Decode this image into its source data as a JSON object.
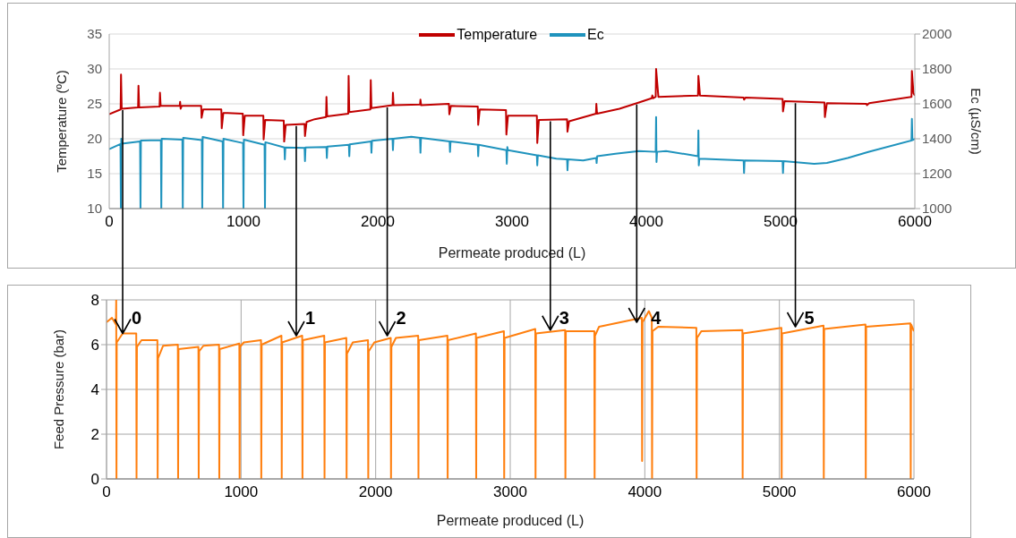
{
  "chart_data": [
    {
      "type": "line",
      "xlabel": "Permeate produced (L)",
      "ylabel": "Temperature (ºC)",
      "y2label": "Ec (µS/cm)",
      "xlim": [
        0,
        6000
      ],
      "xticks": [
        0,
        1000,
        2000,
        3000,
        4000,
        5000,
        6000
      ],
      "ylim": [
        10,
        35
      ],
      "yticks": [
        10,
        15,
        20,
        25,
        30,
        35
      ],
      "y2lim": [
        1000,
        2000
      ],
      "y2ticks": [
        1000,
        1200,
        1400,
        1600,
        1800,
        2000
      ],
      "grid": "y",
      "legend": "top",
      "series": [
        {
          "name": "Temperature",
          "color": "#c00000",
          "x": [
            0,
            85,
            88,
            93,
            215,
            218,
            223,
            375,
            378,
            383,
            525,
            528,
            532,
            540,
            685,
            688,
            700,
            835,
            838,
            850,
            995,
            998,
            1010,
            1148,
            1150,
            1162,
            1300,
            1303,
            1315,
            1455,
            1458,
            1470,
            1530,
            1615,
            1618,
            1623,
            1780,
            1783,
            1788,
            1945,
            1948,
            1953,
            2110,
            2113,
            2118,
            2315,
            2318,
            2323,
            2530,
            2533,
            2545,
            2745,
            2748,
            2760,
            2955,
            2958,
            2970,
            3185,
            3188,
            3200,
            3410,
            3413,
            3425,
            3625,
            3628,
            3633,
            3800,
            3945,
            4040,
            4045,
            4050,
            4070,
            4073,
            4090,
            4385,
            4388,
            4400,
            4725,
            4728,
            4740,
            5015,
            5018,
            5030,
            5327,
            5330,
            5345,
            5640,
            5643,
            5660,
            5975,
            5978,
            5990,
            6000
          ],
          "values": [
            23.5,
            24.2,
            29.2,
            24.3,
            24.5,
            27.6,
            24.5,
            24.6,
            26.6,
            24.7,
            24.7,
            25.3,
            24.3,
            24.7,
            24.7,
            23.0,
            24.2,
            24.2,
            21.5,
            23.7,
            23.6,
            20.5,
            23.3,
            23.3,
            19.9,
            22.7,
            22.6,
            19.6,
            22.0,
            22.1,
            20.4,
            22.4,
            22.8,
            23.1,
            26.0,
            23.2,
            23.6,
            29.0,
            23.8,
            24.2,
            28.4,
            24.4,
            24.8,
            26.6,
            24.8,
            24.9,
            25.6,
            24.8,
            25.0,
            23.5,
            24.7,
            24.6,
            22.0,
            24.2,
            24.1,
            20.6,
            23.3,
            23.3,
            19.4,
            22.7,
            22.8,
            21.0,
            22.5,
            23.6,
            25.0,
            23.6,
            24.3,
            25.2,
            25.8,
            26.2,
            25.8,
            26.0,
            30.0,
            26.0,
            26.2,
            29.0,
            26.2,
            25.9,
            25.6,
            25.9,
            25.7,
            23.9,
            25.4,
            25.2,
            23.1,
            25.1,
            25.0,
            24.8,
            25.1,
            26.0,
            29.7,
            26.5,
            26.2
          ]
        },
        {
          "name": "Ec",
          "color": "#1f93bd",
          "axis": "y2",
          "x": [
            0,
            84,
            87,
            90,
            93,
            230,
            233,
            236,
            385,
            388,
            391,
            545,
            548,
            551,
            690,
            693,
            696,
            845,
            848,
            851,
            997,
            1000,
            1003,
            1157,
            1160,
            1163,
            1305,
            1308,
            1312,
            1455,
            1458,
            1462,
            1618,
            1621,
            1625,
            1785,
            1788,
            1792,
            1950,
            1953,
            1957,
            2110,
            2113,
            2117,
            2250,
            2315,
            2318,
            2322,
            2535,
            2538,
            2542,
            2745,
            2748,
            2752,
            2958,
            2961,
            2965,
            2970,
            3185,
            3188,
            3192,
            3330,
            3410,
            3413,
            3417,
            3530,
            3627,
            3630,
            3634,
            3770,
            3947,
            4070,
            4073,
            4076,
            4080,
            4147,
            4385,
            4388,
            4391,
            4395,
            4725,
            4728,
            4732,
            5015,
            5018,
            5022,
            5250,
            5345,
            5500,
            5653,
            5975,
            5978,
            5982,
            6000
          ],
          "values": [
            1340,
            1370,
            1000,
            1400,
            1372,
            1385,
            1000,
            1390,
            1392,
            1000,
            1400,
            1395,
            1000,
            1405,
            1392,
            1000,
            1410,
            1385,
            1000,
            1400,
            1375,
            1000,
            1395,
            1365,
            1000,
            1380,
            1350,
            1282,
            1350,
            1348,
            1272,
            1350,
            1352,
            1290,
            1355,
            1365,
            1300,
            1368,
            1385,
            1320,
            1388,
            1400,
            1335,
            1400,
            1412,
            1405,
            1320,
            1405,
            1385,
            1325,
            1385,
            1365,
            1300,
            1365,
            1335,
            1257,
            1352,
            1335,
            1305,
            1248,
            1305,
            1286,
            1282,
            1219,
            1282,
            1276,
            1290,
            1261,
            1300,
            1314,
            1330,
            1325,
            1524,
            1267,
            1325,
            1330,
            1300,
            1448,
            1248,
            1286,
            1276,
            1204,
            1276,
            1272,
            1204,
            1272,
            1257,
            1262,
            1290,
            1324,
            1390,
            1514,
            1392,
            1400
          ]
        }
      ]
    },
    {
      "type": "line",
      "xlabel": "Permeate produced (L)",
      "ylabel": "Feed Pressure (bar)",
      "xlim": [
        0,
        6000
      ],
      "xticks": [
        0,
        1000,
        2000,
        3000,
        4000,
        5000,
        6000
      ],
      "ylim": [
        0,
        8
      ],
      "yticks": [
        0,
        2,
        4,
        6,
        8
      ],
      "grid": true,
      "annotations": [
        {
          "text": "0",
          "x": 120,
          "y": 6.5
        },
        {
          "text": "1",
          "x": 1410,
          "y": 6.4
        },
        {
          "text": "2",
          "x": 2086,
          "y": 6.4
        },
        {
          "text": "3",
          "x": 3298,
          "y": 6.65
        },
        {
          "text": "4",
          "x": 3940,
          "y": 7.0
        },
        {
          "text": "5",
          "x": 5119,
          "y": 6.8
        }
      ],
      "series": [
        {
          "color": "#ff7f0e",
          "x": [
            0,
            40,
            70,
            72,
            74,
            76,
            120,
            221,
            223,
            226,
            260,
            378,
            380,
            383,
            420,
            530,
            532,
            535,
            683,
            685,
            688,
            720,
            836,
            838,
            841,
            987,
            989,
            992,
            1020,
            1148,
            1150,
            1153,
            1300,
            1302,
            1305,
            1454,
            1456,
            1459,
            1618,
            1620,
            1623,
            1782,
            1784,
            1787,
            1830,
            1943,
            1945,
            1948,
            1990,
            2112,
            2114,
            2117,
            2150,
            2316,
            2318,
            2321,
            2533,
            2535,
            2538,
            2745,
            2747,
            2750,
            2953,
            2955,
            2958,
            3186,
            3188,
            3191,
            3408,
            3410,
            3413,
            3625,
            3627,
            3630,
            3660,
            3978,
            3980,
            3983,
            4030,
            4052,
            4054,
            4057,
            4100,
            4383,
            4385,
            4388,
            4420,
            4725,
            4727,
            4730,
            5015,
            5017,
            5020,
            5328,
            5330,
            5333,
            5640,
            5642,
            5645,
            5974,
            5976,
            5979,
            6000
          ],
          "values": [
            7.0,
            7.2,
            6.9,
            8.0,
            0,
            6.1,
            6.5,
            6.5,
            0,
            5.9,
            6.2,
            6.2,
            0,
            5.4,
            5.95,
            6.0,
            0,
            5.8,
            5.9,
            0,
            5.7,
            5.95,
            6.0,
            0,
            5.8,
            6.05,
            0,
            5.9,
            6.1,
            6.2,
            0,
            6.0,
            6.4,
            0,
            6.1,
            6.4,
            0,
            6.2,
            6.4,
            0,
            6.1,
            6.3,
            0,
            5.6,
            6.1,
            6.2,
            0,
            5.7,
            6.1,
            6.3,
            0,
            5.9,
            6.3,
            6.4,
            0,
            6.2,
            6.4,
            0,
            6.2,
            6.5,
            0,
            6.3,
            6.6,
            0,
            6.3,
            6.7,
            0,
            6.5,
            6.65,
            0,
            6.6,
            6.6,
            0,
            6.4,
            6.8,
            7.2,
            0.8,
            7.0,
            7.5,
            7.2,
            0,
            6.6,
            6.8,
            6.75,
            0,
            6.3,
            6.6,
            6.65,
            0,
            6.5,
            6.75,
            0,
            6.5,
            6.85,
            0,
            6.7,
            6.9,
            0,
            6.8,
            6.95,
            0,
            6.9,
            6.6
          ]
        }
      ]
    }
  ]
}
